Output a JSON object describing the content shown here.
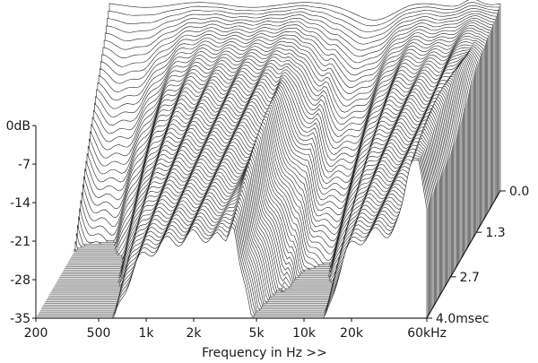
{
  "chart_data": {
    "type": "area",
    "style": "cumulative spectral decay (waterfall), monochrome",
    "xlabel": "Frequency in Hz >>",
    "x_scale": "log",
    "xlim": [
      200,
      60000
    ],
    "x_ticks": [
      {
        "value": 200,
        "label": "200"
      },
      {
        "value": 500,
        "label": "500"
      },
      {
        "value": 1000,
        "label": "1k"
      },
      {
        "value": 2000,
        "label": "2k"
      },
      {
        "value": 5000,
        "label": "5k"
      },
      {
        "value": 10000,
        "label": "10k"
      },
      {
        "value": 20000,
        "label": "20k"
      },
      {
        "value": 60000,
        "label": "60kHz"
      }
    ],
    "ylim": [
      -35,
      0
    ],
    "y_ticks": [
      {
        "value": 0,
        "label": "0dB"
      },
      {
        "value": -7,
        "label": "-7"
      },
      {
        "value": -14,
        "label": "-14"
      },
      {
        "value": -21,
        "label": "-21"
      },
      {
        "value": -28,
        "label": "-28"
      },
      {
        "value": -35,
        "label": "-35"
      }
    ],
    "t_ticks": [
      {
        "value": 0.0,
        "label": "0.0"
      },
      {
        "value": 1.3,
        "label": "1.3"
      },
      {
        "value": 2.7,
        "label": "2.7"
      },
      {
        "value": 4.0,
        "label": "4.0msec"
      }
    ],
    "time_range_ms": [
      0,
      4.0
    ],
    "slice_count": 70,
    "colors": {
      "line": "#222222",
      "floor": "#8c8c8c",
      "fill": "#ffffff"
    },
    "grid": false,
    "legend": "none"
  }
}
